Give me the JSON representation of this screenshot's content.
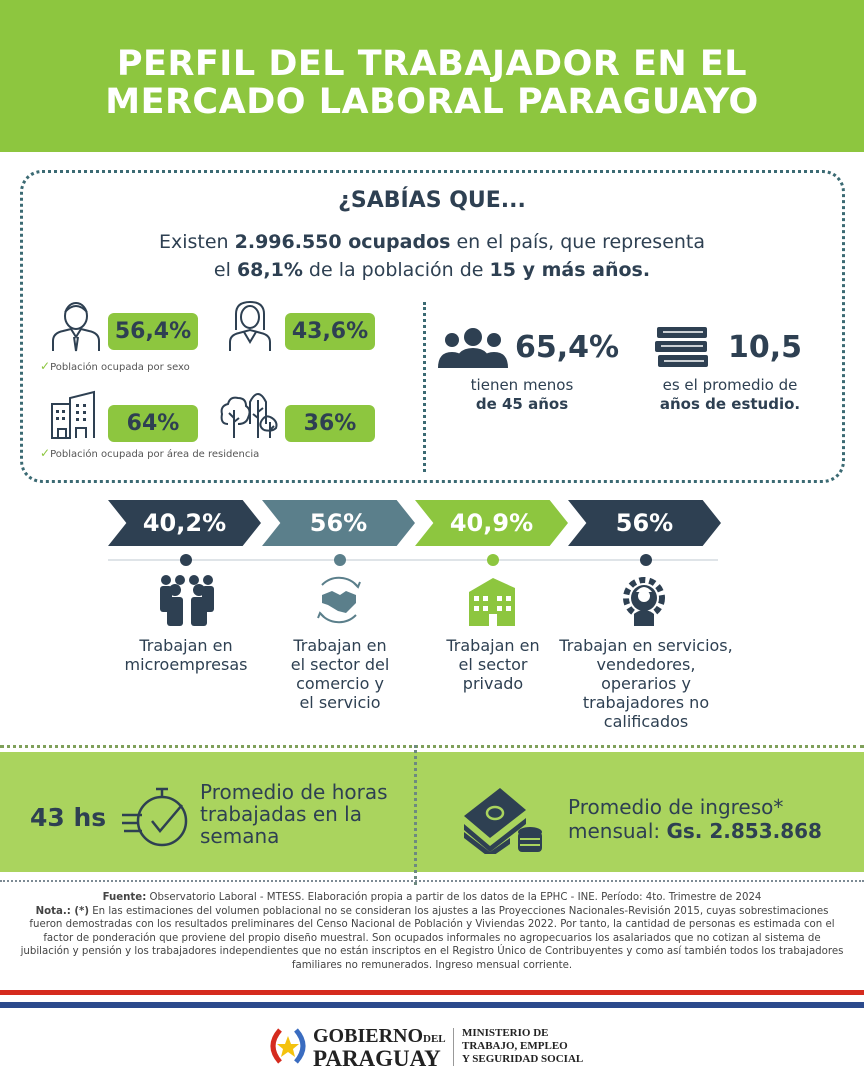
{
  "header": {
    "title_line1": "PERFIL DEL TRABAJADOR EN EL",
    "title_line2": "MERCADO LABORAL PARAGUAYO"
  },
  "sabias": {
    "heading": "¿SABÍAS QUE...",
    "line1_pre": "Existen ",
    "line1_bold": "2.996.550 ocupados",
    "line1_post": " en el país, que representa",
    "line2_pre": "el ",
    "line2_bold1": "68,1%",
    "line2_mid": " de la población de ",
    "line2_bold2": "15 y más años."
  },
  "sexo": {
    "male": "56,4%",
    "female": "43,6%",
    "caption": "Población ocupada por sexo"
  },
  "area": {
    "urban": "64%",
    "rural": "36%",
    "caption": "Población ocupada por área de residencia"
  },
  "age": {
    "value": "65,4%",
    "line1": "tienen menos",
    "line2": "de 45 años"
  },
  "study": {
    "value": "10,5",
    "line1": "es el promedio de",
    "line2": "años de estudio."
  },
  "stats": [
    {
      "value": "40,2%",
      "color": "#2e4052",
      "label": [
        "Trabajan en",
        "microempresas"
      ]
    },
    {
      "value": "56%",
      "color": "#5b7f8b",
      "label": [
        "Trabajan en",
        "el sector del",
        "comercio y",
        "el servicio"
      ]
    },
    {
      "value": "40,9%",
      "color": "#8dc63f",
      "label": [
        "Trabajan en",
        "el sector",
        "privado"
      ]
    },
    {
      "value": "56%",
      "color": "#2e4052",
      "label": [
        "Trabajan en servicios,",
        "vendedores,",
        "operarios y",
        "trabajadores no",
        "calificados"
      ]
    }
  ],
  "hours": {
    "value": "43 hs",
    "line1": "Promedio de horas",
    "line2": "trabajadas en la",
    "line3": "semana"
  },
  "income": {
    "line1": "Promedio de ingreso*",
    "line2_pre": "mensual: ",
    "line2_bold": "Gs. 2.853.868"
  },
  "footer": {
    "fuente_label": "Fuente:",
    "fuente": " Observatorio Laboral - MTESS. Elaboración propia a partir de los datos de la EPHC - INE. Período: 4to. Trimestre de 2024",
    "nota_label": "Nota.: (*)",
    "nota": " En las estimaciones del volumen poblacional no se consideran los ajustes a las Proyecciones Nacionales-Revisión 2015, cuyas sobrestimaciones fueron demostradas con los resultados preliminares del Censo Nacional de Población y Viviendas 2022. Por tanto, la cantidad de personas es estimada con el factor de ponderación que proviene del propio diseño muestral. Son ocupados informales no agropecuarios los asalariados que no cotizan al sistema de jubilación y pensión y los trabajadores independientes que no están inscriptos en el Registro Único de Contribuyentes y como así también todos los trabajadores familiares no remunerados. Ingreso mensual corriente."
  },
  "logo": {
    "gob1": "GOBIERNO",
    "del": "DEL",
    "gob2": "PARAGUAY",
    "min1": "MINISTERIO DE",
    "min2": "TRABAJO, EMPLEO",
    "min3": "Y SEGURIDAD SOCIAL"
  },
  "colors": {
    "green": "#8dc63f",
    "navy": "#2e4052",
    "teal": "#5b7f8b",
    "band": "#aad45e"
  }
}
